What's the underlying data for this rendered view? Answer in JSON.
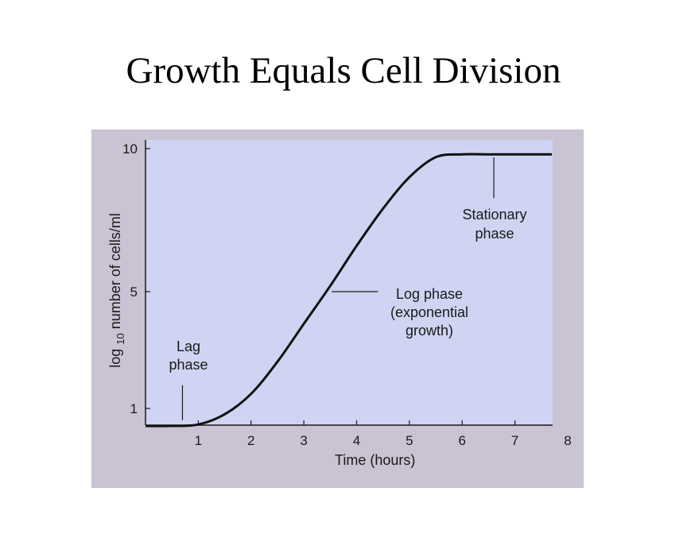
{
  "page": {
    "title": "Growth Equals Cell Division"
  },
  "colors": {
    "figure_background": "#c9c3d3",
    "plot_background": "#cfd4f2",
    "curve": "#111111",
    "text": "#1a1a1a"
  },
  "chart_data": {
    "type": "line",
    "title": "",
    "xlabel": "Time (hours)",
    "ylabel_prefix": "log ",
    "ylabel_subscript": "10",
    "ylabel_suffix": " number of cells/ml",
    "xlim": [
      0,
      8
    ],
    "ylim": [
      0.3,
      10
    ],
    "x_ticks": [
      1,
      2,
      3,
      4,
      5,
      6,
      7,
      8
    ],
    "y_ticks": [
      1,
      5,
      10
    ],
    "grid": false,
    "legend": "none",
    "series": [
      {
        "values_x": [
          0,
          0.5,
          1.0,
          1.5,
          2.0,
          2.5,
          3.0,
          3.5,
          4.0,
          4.5,
          5.0,
          5.5,
          6.0,
          6.5,
          7.0,
          7.7
        ],
        "values_y": [
          0.4,
          0.4,
          0.45,
          0.8,
          1.5,
          2.6,
          3.9,
          5.2,
          6.6,
          7.9,
          9.0,
          9.7,
          9.8,
          9.8,
          9.8,
          9.8
        ]
      }
    ],
    "annotations": [
      {
        "lines": [
          "Lag",
          "phase"
        ],
        "x": 0.7,
        "y": 0.6
      },
      {
        "lines": [
          "Log phase",
          "(exponential",
          "growth)"
        ],
        "x": 3.5,
        "y": 5.0
      },
      {
        "lines": [
          "Stationary",
          "phase"
        ],
        "x": 6.6,
        "y": 9.8
      }
    ]
  }
}
